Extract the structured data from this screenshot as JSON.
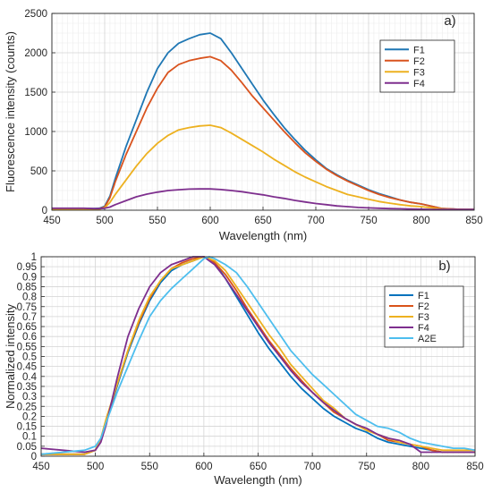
{
  "chart_data": [
    {
      "type": "line",
      "panel_label": "a)",
      "xlabel": "Wavelength (nm)",
      "ylabel": "Fluorescence intensity (counts)",
      "xlim": [
        450,
        850
      ],
      "ylim": [
        0,
        2500
      ],
      "xticks": [
        450,
        500,
        550,
        600,
        650,
        700,
        750,
        800,
        850
      ],
      "yticks": [
        0,
        500,
        1000,
        1500,
        2000,
        2500
      ],
      "grid": true,
      "legend_position": "top-right",
      "x": [
        450,
        480,
        490,
        495,
        500,
        505,
        510,
        520,
        530,
        540,
        550,
        560,
        570,
        580,
        590,
        600,
        610,
        620,
        630,
        640,
        650,
        660,
        670,
        680,
        690,
        700,
        710,
        720,
        730,
        740,
        750,
        760,
        770,
        780,
        790,
        800,
        810,
        820,
        830,
        840,
        850
      ],
      "series": [
        {
          "name": "F1",
          "color": "#1f77b4",
          "values": [
            20,
            20,
            20,
            25,
            50,
            180,
            400,
            800,
            1150,
            1500,
            1800,
            2000,
            2120,
            2180,
            2230,
            2250,
            2180,
            2000,
            1800,
            1600,
            1400,
            1220,
            1050,
            900,
            760,
            640,
            530,
            450,
            380,
            320,
            260,
            210,
            170,
            130,
            100,
            80,
            50,
            20,
            15,
            10,
            10
          ]
        },
        {
          "name": "F2",
          "color": "#d9531e",
          "values": [
            15,
            15,
            15,
            20,
            40,
            160,
            360,
            700,
            1000,
            1300,
            1550,
            1750,
            1850,
            1900,
            1930,
            1950,
            1900,
            1780,
            1620,
            1450,
            1300,
            1150,
            1000,
            860,
            730,
            620,
            520,
            440,
            370,
            310,
            250,
            200,
            160,
            130,
            100,
            80,
            50,
            20,
            15,
            10,
            10
          ]
        },
        {
          "name": "F3",
          "color": "#edb120",
          "values": [
            10,
            10,
            10,
            15,
            30,
            100,
            200,
            380,
            560,
            720,
            850,
            950,
            1020,
            1050,
            1070,
            1080,
            1050,
            980,
            900,
            820,
            740,
            650,
            570,
            490,
            420,
            360,
            300,
            250,
            200,
            170,
            140,
            110,
            90,
            70,
            55,
            45,
            30,
            15,
            10,
            10,
            10
          ]
        },
        {
          "name": "F4",
          "color": "#7e2f8e",
          "values": [
            25,
            25,
            20,
            20,
            25,
            40,
            70,
            120,
            170,
            205,
            230,
            250,
            260,
            268,
            270,
            270,
            262,
            250,
            235,
            215,
            195,
            170,
            150,
            125,
            105,
            85,
            70,
            55,
            45,
            35,
            30,
            25,
            20,
            18,
            15,
            12,
            10,
            10,
            10,
            10,
            10
          ]
        }
      ]
    },
    {
      "type": "line",
      "panel_label": "b)",
      "xlabel": "Wavelength (nm)",
      "ylabel": "Normalized intensity",
      "xlim": [
        450,
        850
      ],
      "ylim": [
        0,
        1
      ],
      "xticks": [
        450,
        500,
        550,
        600,
        650,
        700,
        750,
        800,
        850
      ],
      "yticks": [
        0,
        0.05,
        0.1,
        0.15,
        0.2,
        0.25,
        0.3,
        0.35,
        0.4,
        0.45,
        0.5,
        0.55,
        0.6,
        0.65,
        0.7,
        0.75,
        0.8,
        0.85,
        0.9,
        0.95,
        1
      ],
      "grid": true,
      "legend_position": "right",
      "x": [
        450,
        470,
        490,
        500,
        505,
        510,
        520,
        530,
        540,
        550,
        560,
        570,
        580,
        590,
        600,
        605,
        610,
        620,
        630,
        640,
        650,
        660,
        670,
        680,
        690,
        700,
        710,
        720,
        730,
        740,
        750,
        760,
        770,
        780,
        790,
        800,
        810,
        820,
        830,
        840,
        850
      ],
      "series": [
        {
          "name": "F1",
          "color": "#0072bd",
          "values": [
            0.01,
            0.01,
            0.01,
            0.03,
            0.08,
            0.18,
            0.35,
            0.52,
            0.66,
            0.78,
            0.87,
            0.93,
            0.96,
            0.98,
            1.0,
            0.99,
            0.97,
            0.89,
            0.8,
            0.71,
            0.62,
            0.54,
            0.47,
            0.4,
            0.34,
            0.29,
            0.24,
            0.2,
            0.17,
            0.14,
            0.12,
            0.09,
            0.07,
            0.06,
            0.05,
            0.04,
            0.03,
            0.02,
            0.02,
            0.02,
            0.02
          ]
        },
        {
          "name": "F2",
          "color": "#d95319",
          "values": [
            0.01,
            0.01,
            0.01,
            0.03,
            0.08,
            0.18,
            0.36,
            0.53,
            0.67,
            0.79,
            0.88,
            0.94,
            0.97,
            0.99,
            1.0,
            0.99,
            0.97,
            0.91,
            0.83,
            0.74,
            0.66,
            0.58,
            0.51,
            0.44,
            0.38,
            0.32,
            0.27,
            0.22,
            0.19,
            0.16,
            0.13,
            0.11,
            0.08,
            0.07,
            0.06,
            0.05,
            0.03,
            0.02,
            0.02,
            0.02,
            0.02
          ]
        },
        {
          "name": "F3",
          "color": "#edb120",
          "values": [
            0.01,
            0.01,
            0.01,
            0.03,
            0.09,
            0.19,
            0.36,
            0.53,
            0.68,
            0.8,
            0.88,
            0.94,
            0.96,
            0.98,
            1.0,
            0.99,
            0.98,
            0.93,
            0.85,
            0.77,
            0.69,
            0.61,
            0.54,
            0.46,
            0.4,
            0.34,
            0.28,
            0.24,
            0.19,
            0.16,
            0.13,
            0.11,
            0.09,
            0.07,
            0.06,
            0.05,
            0.04,
            0.03,
            0.03,
            0.03,
            0.03
          ]
        },
        {
          "name": "F4",
          "color": "#7e2f8e",
          "values": [
            0.04,
            0.03,
            0.02,
            0.03,
            0.07,
            0.16,
            0.39,
            0.6,
            0.74,
            0.85,
            0.92,
            0.96,
            0.98,
            1.0,
            1.0,
            0.98,
            0.96,
            0.89,
            0.81,
            0.73,
            0.65,
            0.57,
            0.5,
            0.43,
            0.37,
            0.32,
            0.27,
            0.23,
            0.19,
            0.16,
            0.14,
            0.11,
            0.09,
            0.08,
            0.06,
            0.02,
            0.02,
            0.02,
            0.02,
            0.02,
            0.02
          ]
        },
        {
          "name": "A2E",
          "color": "#4dbeee",
          "values": [
            0.01,
            0.02,
            0.03,
            0.05,
            0.09,
            0.17,
            0.32,
            0.45,
            0.58,
            0.7,
            0.78,
            0.84,
            0.89,
            0.94,
            0.99,
            1.0,
            0.99,
            0.96,
            0.92,
            0.85,
            0.77,
            0.69,
            0.61,
            0.53,
            0.47,
            0.41,
            0.36,
            0.31,
            0.26,
            0.21,
            0.18,
            0.15,
            0.14,
            0.12,
            0.09,
            0.07,
            0.06,
            0.05,
            0.04,
            0.04,
            0.03
          ]
        }
      ]
    }
  ]
}
